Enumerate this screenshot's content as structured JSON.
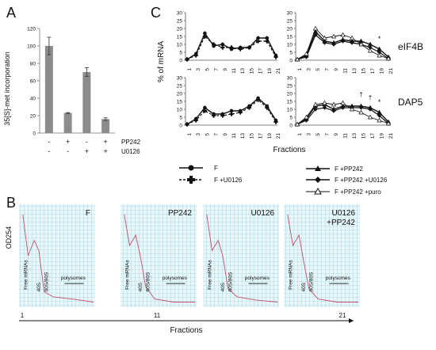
{
  "panels": {
    "A": {
      "letter": "A",
      "ylabel": "35[S]-met incorporation",
      "yticks": [
        "0",
        "20",
        "40",
        "60",
        "80",
        "100",
        "120"
      ],
      "row_labels": [
        "PP242",
        "U0126"
      ],
      "conditions": [
        {
          "pp242": "-",
          "u0126": "-"
        },
        {
          "pp242": "+",
          "u0126": "-"
        },
        {
          "pp242": "-",
          "u0126": "+"
        },
        {
          "pp242": "+",
          "u0126": "+"
        }
      ]
    },
    "C": {
      "letter": "C",
      "ylabel": "% of mRNA",
      "xlabel": "Fractions",
      "row_labels": [
        "eIF4B",
        "DAP5"
      ],
      "yticks": [
        "0",
        "5",
        "10",
        "15",
        "20",
        "25",
        "30"
      ],
      "xticks": [
        "1",
        "3",
        "5",
        "7",
        "9",
        "11",
        "13",
        "15",
        "17",
        "19",
        "21"
      ],
      "legend_left": [
        "F",
        "F +U0126"
      ],
      "legend_right": [
        "F +PP242",
        "F +PP242 +U0126",
        "F +PP242 +puro"
      ]
    },
    "B": {
      "letter": "B",
      "ylabel": "OD254",
      "xlabel": "Fractions",
      "xticks": [
        "1",
        "11",
        "21"
      ],
      "panels": [
        {
          "title": "F",
          "free": "Free mRNAs",
          "s40": "40S",
          "s6080": "60S/80S",
          "poly": "polysomes"
        },
        {
          "title": "PP242",
          "free": "Free mRNAs",
          "s40": "40S",
          "s6080": "60S/80S",
          "poly": "polysomes"
        },
        {
          "title": "U0126",
          "free": "Free mRNAs",
          "s40": "40S",
          "s6080": "60S/80S",
          "poly": "polysomes"
        },
        {
          "title": "U0126\n+PP242",
          "free": "Free mRNAs",
          "s40": "40S",
          "s6080": "60S/80S",
          "poly": "polysomes"
        }
      ]
    }
  },
  "chart_data": [
    {
      "type": "bar",
      "panel": "A",
      "ylabel": "35[S]-met incorporation",
      "ylim": [
        0,
        120
      ],
      "values": [
        100,
        23,
        70,
        16
      ],
      "errors": [
        10,
        0.5,
        5,
        1.5
      ]
    },
    {
      "type": "line",
      "panel": "C-top-left",
      "x": [
        1,
        3,
        5,
        7,
        9,
        11,
        13,
        15,
        17,
        19,
        21
      ],
      "ylim": [
        0,
        30
      ],
      "series": [
        {
          "name": "F",
          "values": [
            0.5,
            4,
            17,
            9,
            10,
            7,
            8,
            8,
            14,
            14,
            3
          ]
        },
        {
          "name": "F +U0126",
          "values": [
            0.5,
            3,
            15,
            10,
            8,
            8,
            7,
            8,
            12,
            12,
            2
          ]
        }
      ]
    },
    {
      "type": "line",
      "panel": "C-top-right",
      "x": [
        1,
        3,
        5,
        7,
        9,
        11,
        13,
        15,
        17,
        19,
        21
      ],
      "ylim": [
        0,
        30
      ],
      "annotations": [
        "*"
      ],
      "series": [
        {
          "name": "F +PP242",
          "values": [
            0.5,
            3,
            18,
            12,
            11,
            13,
            12,
            12,
            10,
            7,
            2
          ]
        },
        {
          "name": "F +PP242 +U0126",
          "values": [
            0.5,
            2,
            16,
            11,
            10,
            12,
            11,
            10,
            8,
            5,
            1
          ]
        },
        {
          "name": "F +PP242 +puro",
          "values": [
            0.5,
            4,
            20,
            14,
            15,
            16,
            14,
            10,
            6,
            3,
            1
          ]
        }
      ]
    },
    {
      "type": "line",
      "panel": "C-bottom-left",
      "x": [
        1,
        3,
        5,
        7,
        9,
        11,
        13,
        15,
        17,
        19,
        21
      ],
      "ylim": [
        0,
        30
      ],
      "series": [
        {
          "name": "F",
          "values": [
            0.5,
            4,
            11,
            7,
            7,
            9,
            9,
            12,
            17,
            12,
            3
          ]
        },
        {
          "name": "F +U0126",
          "values": [
            0.5,
            3,
            9,
            6,
            6,
            7,
            8,
            11,
            16,
            11,
            2
          ]
        }
      ]
    },
    {
      "type": "line",
      "panel": "C-bottom-right",
      "x": [
        1,
        3,
        5,
        7,
        9,
        11,
        13,
        15,
        17,
        19,
        21
      ],
      "ylim": [
        0,
        30
      ],
      "annotations": [
        "†",
        "†",
        "*"
      ],
      "series": [
        {
          "name": "F +PP242",
          "values": [
            0.5,
            4,
            12,
            13,
            10,
            12,
            12,
            12,
            11,
            8,
            2
          ]
        },
        {
          "name": "F +PP242 +U0126",
          "values": [
            0.5,
            3,
            10,
            11,
            9,
            11,
            11,
            11,
            10,
            6,
            1
          ]
        },
        {
          "name": "F +PP242 +puro",
          "values": [
            0.5,
            5,
            13,
            14,
            13,
            14,
            10,
            8,
            5,
            3,
            1
          ]
        }
      ]
    }
  ]
}
